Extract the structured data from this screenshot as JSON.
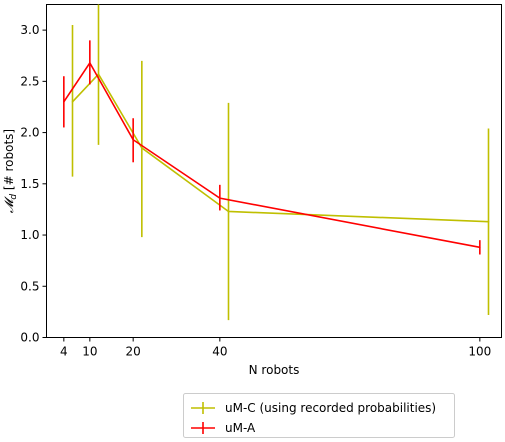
{
  "chart_data": {
    "type": "line",
    "xlabel": "N robots",
    "ylabel_math": "𝓜",
    "ylabel_sub": "d",
    "ylabel_unit": "[# robots]",
    "ylim": [
      0,
      3.25
    ],
    "xlim": [
      0,
      105
    ],
    "x_ticks": [
      4,
      10,
      20,
      40,
      100
    ],
    "y_ticks": [
      "0.0",
      "0.5",
      "1.0",
      "1.5",
      "2.0",
      "2.5",
      "3.0"
    ],
    "grid": false,
    "legend_position": "bottom-center, below plot",
    "series": [
      {
        "name": "uM-C (using recorded probabilities)",
        "color": "#bfbf00",
        "x": [
          6,
          12,
          22,
          42,
          102
        ],
        "y": [
          2.3,
          2.57,
          1.85,
          1.23,
          1.13
        ],
        "err_low": [
          1.57,
          1.88,
          0.98,
          0.17,
          0.22
        ],
        "err_high": [
          3.05,
          3.25,
          2.7,
          2.29,
          2.04
        ]
      },
      {
        "name": "uM-A",
        "color": "#ff0000",
        "x": [
          4,
          10,
          20,
          40,
          100
        ],
        "y": [
          2.3,
          2.68,
          1.93,
          1.36,
          0.88
        ],
        "err_low": [
          2.05,
          2.47,
          1.71,
          1.24,
          0.81
        ],
        "err_high": [
          2.55,
          2.9,
          2.14,
          1.49,
          0.95
        ]
      }
    ]
  }
}
